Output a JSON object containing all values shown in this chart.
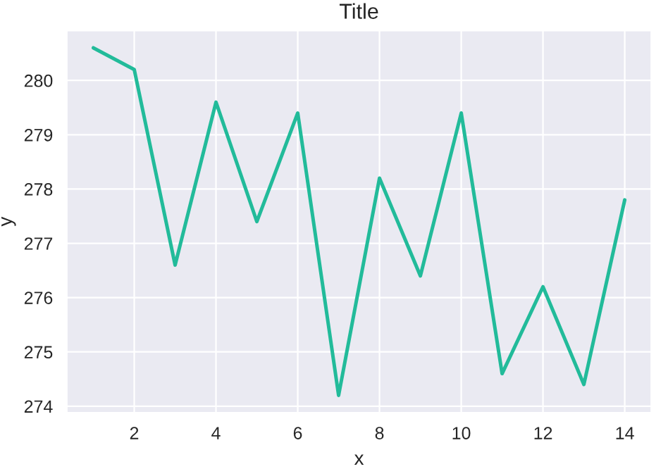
{
  "chart_data": {
    "type": "line",
    "title": "Title",
    "xlabel": "x",
    "ylabel": "y",
    "x": [
      1,
      2,
      3,
      4,
      5,
      6,
      7,
      8,
      9,
      10,
      11,
      12,
      13,
      14
    ],
    "series": [
      {
        "color": "#22bb9a",
        "values": [
          280.6,
          280.2,
          276.6,
          279.6,
          277.4,
          279.4,
          274.2,
          278.2,
          276.4,
          279.4,
          274.6,
          276.2,
          274.4,
          277.8
        ]
      }
    ],
    "xlim": [
      0.35,
      14.65
    ],
    "ylim": [
      273.88,
      280.92
    ],
    "xticks": [
      2,
      4,
      6,
      8,
      10,
      12,
      14
    ],
    "yticks": [
      274,
      275,
      276,
      277,
      278,
      279,
      280
    ],
    "grid": true,
    "marker": "none",
    "line_style": "solid"
  }
}
